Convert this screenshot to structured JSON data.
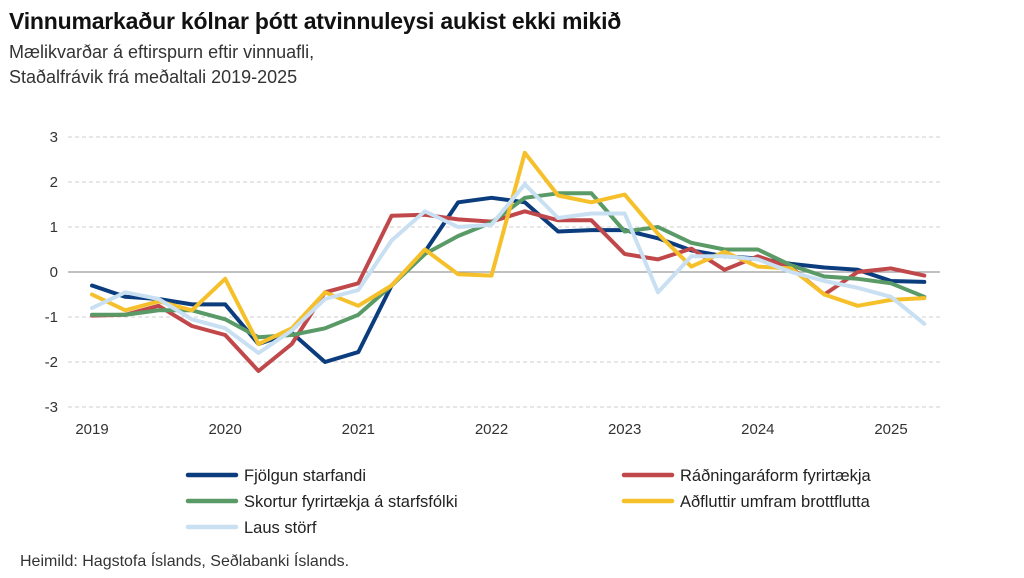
{
  "header": {
    "title": "Vinnumarkaður kólnar þótt atvinnuleysi aukist ekki mikið",
    "subtitle_line1": "Mælikvarðar á eftirspurn eftir vinnuafli,",
    "subtitle_line2": "Staðalfrávik frá meðaltali 2019-2025"
  },
  "footer": {
    "source": "Heimild: Hagstofa Íslands, Seðlabanki Íslands."
  },
  "chart_data": {
    "type": "line",
    "title": "Vinnumarkaður kólnar þótt atvinnuleysi aukist ekki mikið",
    "ylim": [
      -3,
      3
    ],
    "yticks": [
      3,
      2,
      1,
      0,
      -1,
      -2,
      -3
    ],
    "xlim": [
      2019,
      2025.5
    ],
    "xticks": [
      2019,
      2020,
      2021,
      2022,
      2023,
      2024,
      2025
    ],
    "grid": true,
    "legend_position": "bottom",
    "x": [
      2019.0,
      2019.25,
      2019.5,
      2019.75,
      2020.0,
      2020.25,
      2020.5,
      2020.75,
      2021.0,
      2021.25,
      2021.5,
      2021.75,
      2022.0,
      2022.25,
      2022.5,
      2022.75,
      2023.0,
      2023.25,
      2023.5,
      2023.75,
      2024.0,
      2024.25,
      2024.5,
      2024.75,
      2025.0,
      2025.25
    ],
    "series": [
      {
        "name": "Fjölgun starfandi",
        "color": "#0b3d7e",
        "values": [
          -0.3,
          -0.55,
          -0.6,
          -0.72,
          -0.72,
          -1.6,
          -1.35,
          -2.0,
          -1.78,
          -0.3,
          0.45,
          1.55,
          1.65,
          1.55,
          0.9,
          0.93,
          0.93,
          0.75,
          0.48,
          0.35,
          0.3,
          0.18,
          0.1,
          0.05,
          -0.2,
          -0.22
        ]
      },
      {
        "name": "Ráðningaráform fyrirtækja",
        "color": "#c0484a",
        "values": [
          -0.97,
          -0.95,
          -0.75,
          -1.2,
          -1.4,
          -2.2,
          -1.6,
          -0.45,
          -0.25,
          1.25,
          1.27,
          1.17,
          1.12,
          1.35,
          1.15,
          1.15,
          0.4,
          0.28,
          0.52,
          0.05,
          0.35,
          0.1,
          -0.5,
          0.0,
          0.08,
          -0.08
        ]
      },
      {
        "name": "Skortur fyrirtækja á starfsfólki",
        "color": "#5a9a66",
        "values": [
          -0.95,
          -0.95,
          -0.85,
          -0.85,
          -1.05,
          -1.45,
          -1.4,
          -1.25,
          -0.95,
          -0.3,
          0.4,
          0.8,
          1.1,
          1.65,
          1.75,
          1.75,
          0.9,
          1.0,
          0.65,
          0.5,
          0.5,
          0.15,
          -0.1,
          -0.15,
          -0.25,
          -0.55
        ]
      },
      {
        "name": "Aðfluttir umfram brottflutta",
        "color": "#f5c02a",
        "values": [
          -0.5,
          -0.85,
          -0.65,
          -0.85,
          -0.15,
          -1.6,
          -1.25,
          -0.45,
          -0.75,
          -0.3,
          0.5,
          -0.05,
          -0.08,
          2.65,
          1.7,
          1.55,
          1.72,
          0.85,
          0.12,
          0.45,
          0.12,
          0.08,
          -0.5,
          -0.75,
          -0.62,
          -0.58
        ]
      },
      {
        "name": "Laus störf",
        "color": "#c9dff2",
        "values": [
          -0.8,
          -0.45,
          -0.6,
          -1.05,
          -1.25,
          -1.8,
          -1.3,
          -0.6,
          -0.4,
          0.7,
          1.35,
          1.0,
          1.05,
          1.95,
          1.2,
          1.3,
          1.3,
          -0.45,
          0.35,
          0.35,
          0.28,
          0.0,
          -0.2,
          -0.35,
          -0.55,
          -1.15
        ]
      }
    ]
  }
}
